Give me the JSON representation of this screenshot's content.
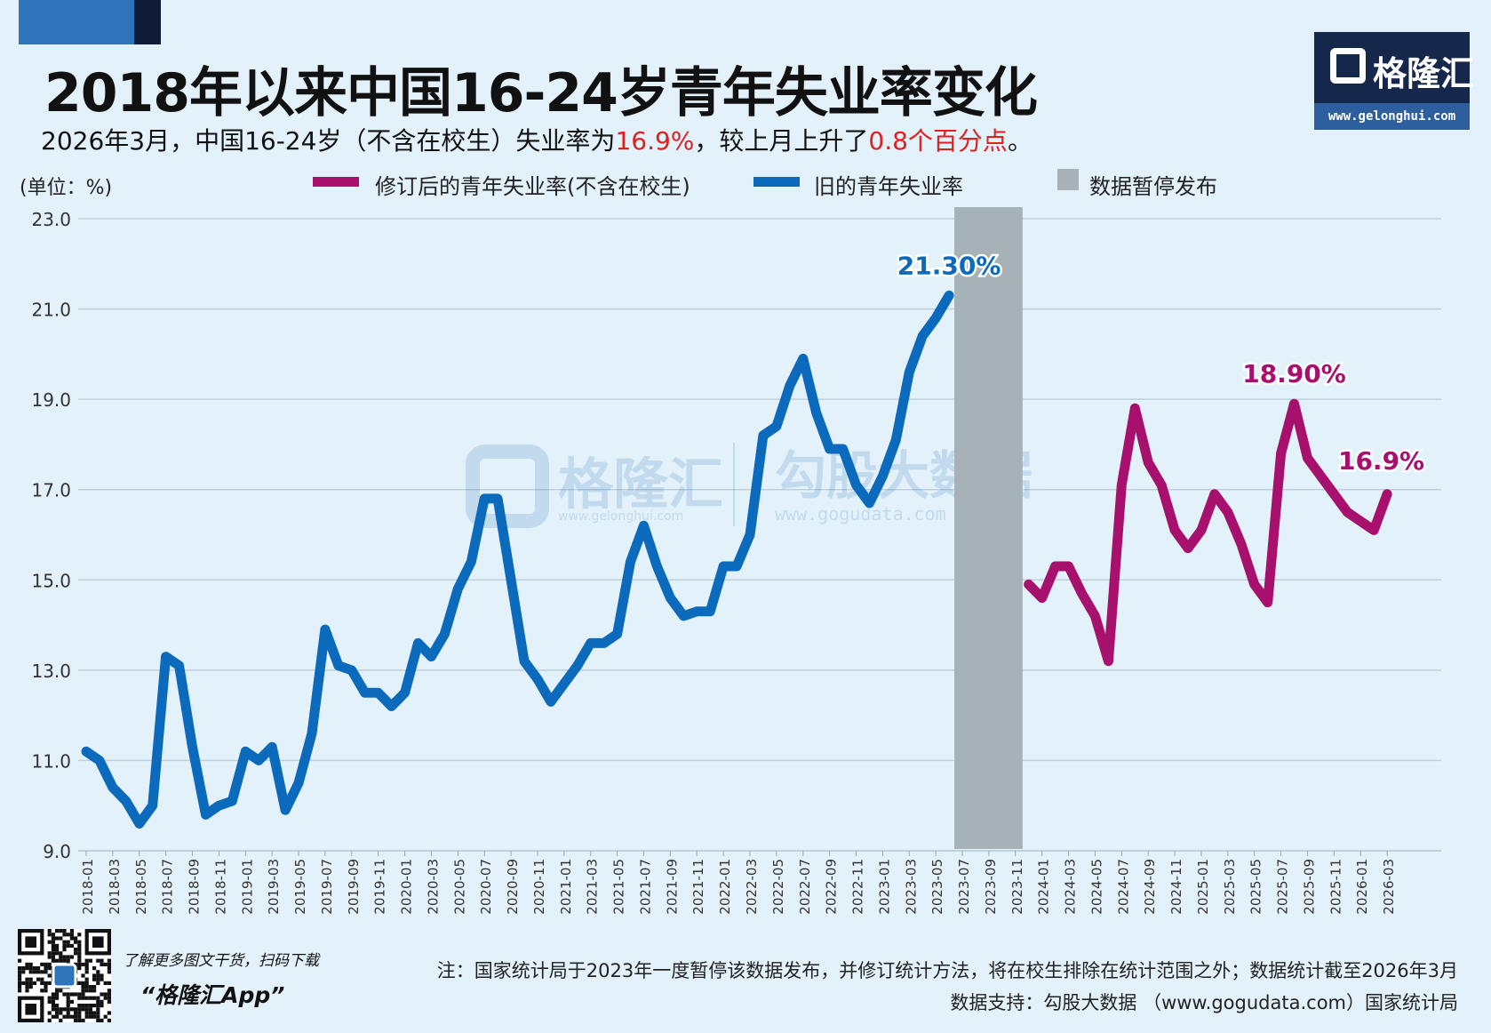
{
  "header": {
    "title": "2018年以来中国16-24岁青年失业率变化",
    "subtitle_part1": "2026年3月，中国16-24岁（不含在校生）失业率为",
    "subtitle_value": "16.9%",
    "subtitle_part2": "，较上月上升了",
    "subtitle_change": "0.8个百分点",
    "subtitle_end": "。"
  },
  "logo": {
    "name": "格隆汇",
    "url": "www.gelonghui.com"
  },
  "unit_label": "(单位：%)",
  "legend": [
    {
      "label": "修订后的青年失业率(不含在校生)",
      "color": "#a8106e"
    },
    {
      "label": "旧的青年失业率",
      "color": "#0c6abc"
    },
    {
      "label": "数据暂停发布",
      "color": "#a6b2b7"
    }
  ],
  "watermarks": {
    "brand": "格隆汇",
    "brand_url": "www.gelonghui.com",
    "partner": "勾股大数据",
    "partner_url": "www.gogudata.com"
  },
  "chart_data": {
    "type": "line",
    "ylim": [
      9.0,
      23.0
    ],
    "yticks": [
      "9.0",
      "11.0",
      "13.0",
      "15.0",
      "17.0",
      "19.0",
      "21.0",
      "23.0"
    ],
    "xticks": [
      "2018-01",
      "2018-03",
      "2018-05",
      "2018-07",
      "2018-09",
      "2018-11",
      "2019-01",
      "2019-03",
      "2019-05",
      "2019-07",
      "2019-09",
      "2019-11",
      "2020-01",
      "2020-03",
      "2020-05",
      "2020-07",
      "2020-09",
      "2020-11",
      "2021-01",
      "2021-03",
      "2021-05",
      "2021-07",
      "2021-09",
      "2021-11",
      "2022-01",
      "2022-03",
      "2022-05",
      "2022-07",
      "2022-09",
      "2022-11",
      "2023-01",
      "2023-03",
      "2023-05",
      "2023-07",
      "2023-09",
      "2023-11",
      "2024-01",
      "2024-03",
      "2024-05",
      "2024-07",
      "2024-09",
      "2024-11",
      "2025-01",
      "2025-03",
      "2025-05",
      "2025-07",
      "2025-09",
      "2025-11",
      "2026-01",
      "2026-03"
    ],
    "x_start": "2018-01",
    "paused_range": [
      "2023-07",
      "2023-11"
    ],
    "grid": true,
    "series": [
      {
        "name": "旧的青年失业率",
        "color": "#0c6abc",
        "start": "2018-01",
        "values": [
          11.2,
          11.0,
          10.4,
          10.1,
          9.6,
          10.0,
          13.3,
          13.1,
          11.3,
          9.8,
          10.0,
          10.1,
          11.2,
          11.0,
          11.3,
          9.9,
          10.5,
          11.6,
          13.9,
          13.1,
          13.0,
          12.5,
          12.5,
          12.2,
          12.5,
          13.6,
          13.3,
          13.8,
          14.8,
          15.4,
          16.8,
          16.8,
          15.0,
          13.2,
          12.8,
          12.3,
          12.7,
          13.1,
          13.6,
          13.6,
          13.8,
          15.4,
          16.2,
          15.3,
          14.6,
          14.2,
          14.3,
          14.3,
          15.3,
          15.3,
          16.0,
          18.2,
          18.4,
          19.3,
          19.9,
          18.7,
          17.9,
          17.9,
          17.1,
          16.7,
          17.3,
          18.1,
          19.6,
          20.4,
          20.8,
          21.3
        ]
      },
      {
        "name": "修订后的青年失业率(不含在校生)",
        "color": "#a8106e",
        "start": "2023-12",
        "values": [
          14.9,
          14.6,
          15.3,
          15.3,
          14.7,
          14.2,
          13.2,
          17.1,
          18.8,
          17.6,
          17.1,
          16.1,
          15.7,
          16.1,
          16.9,
          16.5,
          15.8,
          14.9,
          14.5,
          17.8,
          18.9,
          17.7,
          17.3,
          16.9,
          16.5,
          16.3,
          16.1,
          16.9
        ]
      }
    ],
    "annotations": [
      {
        "text": "21.30%",
        "date": "2023-06",
        "value": 21.3,
        "color": "#0c6abc"
      },
      {
        "text": "18.90%",
        "date": "2025-08",
        "value": 18.9,
        "color": "#a8106e"
      },
      {
        "text": "16.9%",
        "date": "2026-03",
        "value": 16.9,
        "color": "#a8106e"
      }
    ]
  },
  "footer": {
    "note": "注：国家统计局于2023年一度暂停该数据发布，并修订统计方法，将在校生排除在统计范围之外；数据统计截至2026年3月",
    "source": "数据支持：勾股大数据 （www.gogudata.com）国家统计局",
    "promo_line": "了解更多图文干货，扫码下载",
    "promo_app": "“格隆汇App”"
  }
}
